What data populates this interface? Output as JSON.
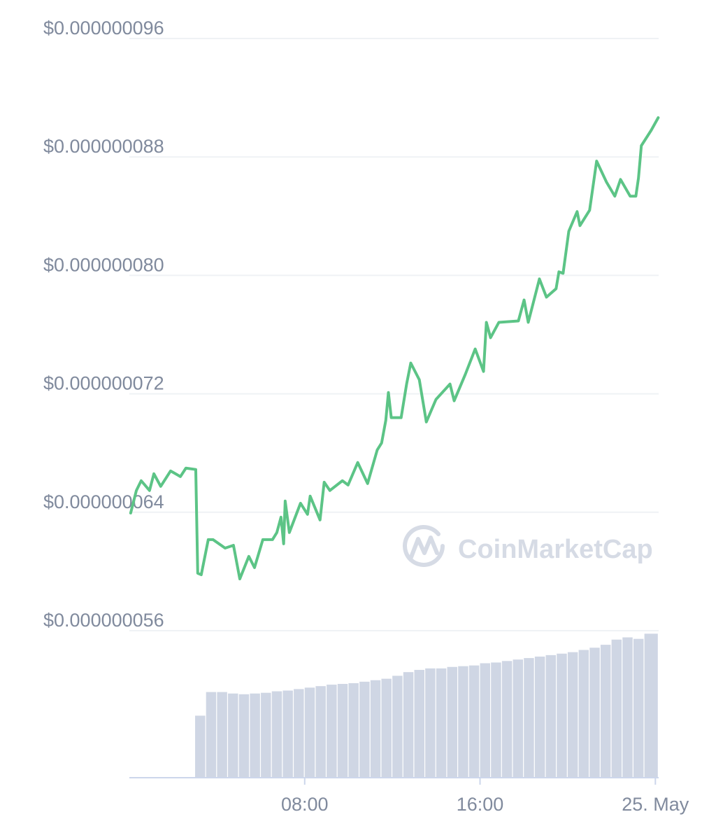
{
  "chart_data": {
    "type": "line",
    "watermark": "CoinMarketCap",
    "x": [
      0.06,
      0.32,
      0.54,
      0.92,
      1.12,
      1.43,
      1.88,
      2.33,
      2.58,
      3.03,
      3.12,
      3.28,
      3.6,
      3.82,
      4.37,
      4.75,
      5.04,
      5.45,
      5.71,
      6.09,
      6.53,
      6.73,
      6.92,
      7.04,
      7.11,
      7.3,
      7.81,
      8.13,
      8.25,
      8.7,
      8.89,
      9.15,
      9.72,
      9.98,
      10.42,
      10.87,
      11.31,
      11.51,
      11.7,
      11.82,
      11.95,
      12.4,
      12.65,
      12.84,
      13.23,
      13.55,
      13.99,
      14.63,
      14.82,
      15.33,
      15.78,
      16.16,
      16.29,
      16.48,
      16.86,
      17.75,
      18.01,
      18.2,
      18.71,
      19.03,
      19.47,
      19.6,
      19.79,
      20.05,
      20.43,
      20.56,
      21.0,
      21.32,
      21.77,
      22.15,
      22.41,
      22.85,
      23.11,
      23.23,
      23.36,
      23.81,
      24.13
    ],
    "series": [
      {
        "color": "#5cc486",
        "values": [
          6.395e-08,
          6.547e-08,
          6.613e-08,
          6.547e-08,
          6.66e-08,
          6.575e-08,
          6.679e-08,
          6.641e-08,
          6.698e-08,
          6.689e-08,
          5.988e-08,
          5.978e-08,
          6.215e-08,
          6.215e-08,
          6.158e-08,
          6.177e-08,
          5.95e-08,
          6.102e-08,
          6.026e-08,
          6.215e-08,
          6.215e-08,
          6.263e-08,
          6.367e-08,
          6.187e-08,
          6.476e-08,
          6.263e-08,
          6.461e-08,
          6.386e-08,
          6.509e-08,
          6.348e-08,
          6.603e-08,
          6.547e-08,
          6.613e-08,
          6.584e-08,
          6.736e-08,
          6.594e-08,
          6.821e-08,
          6.868e-08,
          7.02e-08,
          7.209e-08,
          7.039e-08,
          7.039e-08,
          7.266e-08,
          7.408e-08,
          7.295e-08,
          7.01e-08,
          7.162e-08,
          7.266e-08,
          7.153e-08,
          7.332e-08,
          7.503e-08,
          7.351e-08,
          7.683e-08,
          7.579e-08,
          7.683e-08,
          7.692e-08,
          7.834e-08,
          7.683e-08,
          7.976e-08,
          7.853e-08,
          7.91e-08,
          8.024e-08,
          8.014e-08,
          8.298e-08,
          8.431e-08,
          8.336e-08,
          8.44e-08,
          8.772e-08,
          8.63e-08,
          8.535e-08,
          8.648e-08,
          8.535e-08,
          8.535e-08,
          8.658e-08,
          8.876e-08,
          8.98e-08,
          9.065e-08
        ]
      }
    ],
    "volume": {
      "color": "#cfd6e4",
      "x": [
        0,
        0.5,
        1,
        1.5,
        2,
        2.5,
        3,
        3.5,
        4,
        4.5,
        5,
        5.5,
        6,
        6.5,
        7,
        7.5,
        8,
        8.5,
        9,
        9.5,
        10,
        10.5,
        11,
        11.5,
        12,
        12.5,
        13,
        13.5,
        14,
        14.5,
        15,
        15.5,
        16,
        16.5,
        17,
        17.5,
        18,
        18.5,
        19,
        19.5,
        20,
        20.5,
        21,
        21.5,
        22,
        22.5,
        23,
        23.5
      ],
      "values": [
        0,
        0,
        0,
        0,
        0,
        0,
        84,
        116,
        116,
        114,
        113,
        114,
        115,
        117,
        118,
        120,
        122,
        124,
        126,
        127,
        128,
        130,
        132,
        134,
        138,
        143,
        146,
        148,
        148,
        150,
        151,
        152,
        155,
        156,
        158,
        160,
        162,
        164,
        166,
        168,
        170,
        173,
        176,
        180,
        187,
        190,
        188,
        195
      ],
      "vlim": [
        0,
        200
      ]
    },
    "xlim": [
      0,
      24.15
    ],
    "xticks": [
      {
        "value": 8,
        "label": "08:00"
      },
      {
        "value": 16,
        "label": "16:00"
      },
      {
        "value": 24,
        "label": "25. May"
      }
    ],
    "ylim": [
      5.6e-08,
      9.6e-08
    ],
    "yticks": [
      {
        "value": 5.6e-08,
        "label": "$0.000000056"
      },
      {
        "value": 6.4e-08,
        "label": "$0.000000064"
      },
      {
        "value": 7.2e-08,
        "label": "$0.000000072"
      },
      {
        "value": 8e-08,
        "label": "$0.000000080"
      },
      {
        "value": 8.8e-08,
        "label": "$0.000000088"
      },
      {
        "value": 9.6e-08,
        "label": "$0.000000096"
      }
    ],
    "grid": true
  }
}
